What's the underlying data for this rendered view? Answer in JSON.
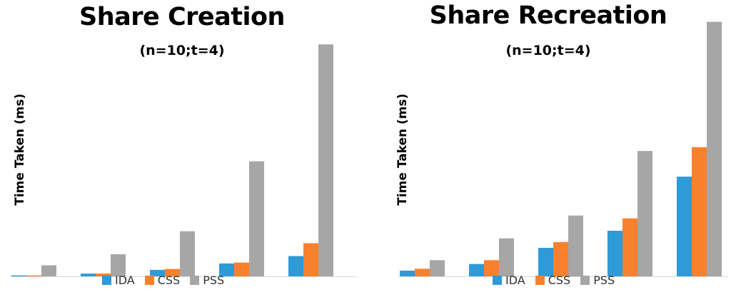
{
  "chart_data": [
    {
      "type": "bar",
      "title": "Share Creation",
      "subtitle": "(n=10;t=4)",
      "xlabel": "",
      "ylabel": "Time Taken (ms)",
      "categories": [
        "",
        "",
        "",
        "",
        ""
      ],
      "series": [
        {
          "name": "IDA",
          "color": "#2E9AD8",
          "values": [
            1,
            3,
            7,
            14,
            22
          ]
        },
        {
          "name": "CSS",
          "color": "#F8812E",
          "values": [
            1,
            3,
            8,
            15,
            36
          ]
        },
        {
          "name": "PSS",
          "color": "#A6A6A6",
          "values": [
            12,
            24,
            49,
            125,
            252
          ]
        }
      ],
      "ylim": [
        0,
        260
      ],
      "grid": false,
      "legend": "bottom"
    },
    {
      "type": "bar",
      "title": "Share Recreation",
      "subtitle": "(n=10;t=4)",
      "xlabel": "",
      "ylabel": "Time Taken (ms)",
      "categories": [
        "",
        "",
        "",
        "",
        ""
      ],
      "series": [
        {
          "name": "IDA",
          "color": "#2E9AD8",
          "values": [
            6,
            13,
            30,
            48,
            105
          ]
        },
        {
          "name": "CSS",
          "color": "#F8812E",
          "values": [
            8,
            17,
            36,
            61,
            136
          ]
        },
        {
          "name": "PSS",
          "color": "#A6A6A6",
          "values": [
            17,
            40,
            64,
            132,
            268
          ]
        }
      ],
      "ylim": [
        0,
        270
      ],
      "grid": false,
      "legend": "bottom"
    }
  ]
}
